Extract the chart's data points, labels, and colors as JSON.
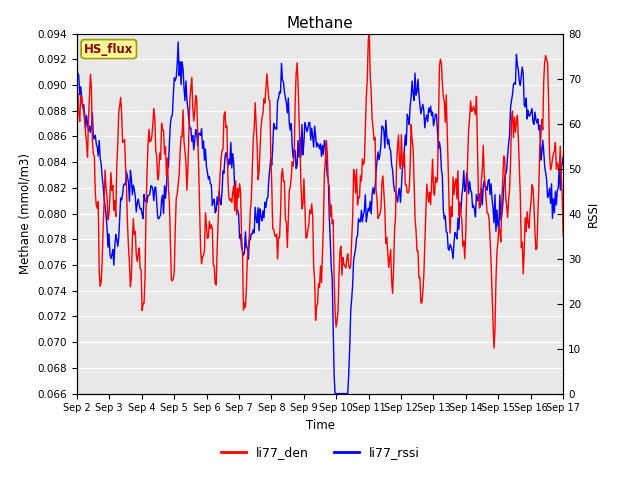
{
  "title": "Methane",
  "ylabel_left": "Methane (mmol/m3)",
  "ylabel_right": "RSSI",
  "xlabel": "Time",
  "ylim_left": [
    0.066,
    0.094
  ],
  "ylim_right": [
    0,
    80
  ],
  "yticks_left": [
    0.066,
    0.068,
    0.07,
    0.072,
    0.074,
    0.076,
    0.078,
    0.08,
    0.082,
    0.084,
    0.086,
    0.088,
    0.09,
    0.092,
    0.094
  ],
  "yticks_right": [
    0,
    10,
    20,
    30,
    40,
    50,
    60,
    70,
    80
  ],
  "xtick_labels": [
    "Sep 2",
    "Sep 3",
    "Sep 4",
    "Sep 5",
    "Sep 6",
    "Sep 7",
    "Sep 8",
    "Sep 9",
    "Sep 10",
    "Sep 11",
    "Sep 12",
    "Sep 13",
    "Sep 14",
    "Sep 15",
    "Sep 16",
    "Sep 17"
  ],
  "color_red": "#FF0000",
  "color_blue": "#0000FF",
  "legend_label_red": "li77_den",
  "legend_label_blue": "li77_rssi",
  "box_label": "HS_flux",
  "box_bg": "#FFFF99",
  "box_edge": "#999900",
  "bg_color": "#E8E8E8",
  "grid_color": "#FFFFFF",
  "line_width": 1.0,
  "seed": 12345
}
